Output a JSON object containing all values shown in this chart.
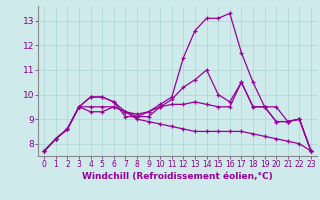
{
  "xlabel": "Windchill (Refroidissement éolien,°C)",
  "background_color": "#ceeaea",
  "line_color": "#990099",
  "x_ticks": [
    0,
    1,
    2,
    3,
    4,
    5,
    6,
    7,
    8,
    9,
    10,
    11,
    12,
    13,
    14,
    15,
    16,
    17,
    18,
    19,
    20,
    21,
    22,
    23
  ],
  "y_ticks": [
    8,
    9,
    10,
    11,
    12,
    13
  ],
  "ylim": [
    7.5,
    13.6
  ],
  "xlim": [
    -0.5,
    23.5
  ],
  "lines": [
    [
      7.7,
      8.2,
      8.6,
      9.5,
      9.9,
      9.9,
      9.7,
      9.1,
      9.1,
      9.3,
      9.5,
      9.6,
      9.6,
      9.7,
      9.6,
      9.5,
      9.5,
      10.5,
      9.5,
      9.5,
      8.9,
      8.9,
      9.0,
      7.7
    ],
    [
      7.7,
      8.2,
      8.6,
      9.5,
      9.9,
      9.9,
      9.7,
      9.3,
      9.0,
      8.9,
      8.8,
      8.7,
      8.6,
      8.5,
      8.5,
      8.5,
      8.5,
      8.5,
      8.4,
      8.3,
      8.2,
      8.1,
      8.0,
      7.7
    ],
    [
      7.7,
      8.2,
      8.6,
      9.5,
      9.3,
      9.3,
      9.5,
      9.3,
      9.2,
      9.3,
      9.6,
      9.9,
      11.5,
      12.6,
      13.1,
      13.1,
      13.3,
      11.7,
      10.5,
      9.5,
      9.5,
      8.9,
      9.0,
      7.7
    ],
    [
      7.7,
      8.2,
      8.6,
      9.5,
      9.5,
      9.5,
      9.5,
      9.3,
      9.1,
      9.1,
      9.5,
      9.8,
      10.3,
      10.6,
      11.0,
      10.0,
      9.7,
      10.5,
      9.5,
      9.5,
      8.9,
      8.9,
      9.0,
      7.7
    ]
  ],
  "grid_color": "#aed4d4",
  "tick_color": "#880088",
  "spine_color": "#888888",
  "xlabel_fontsize": 6.5,
  "tick_fontsize": 5.5,
  "ytick_fontsize": 6.5,
  "linewidth": 0.9,
  "markersize": 3.5
}
